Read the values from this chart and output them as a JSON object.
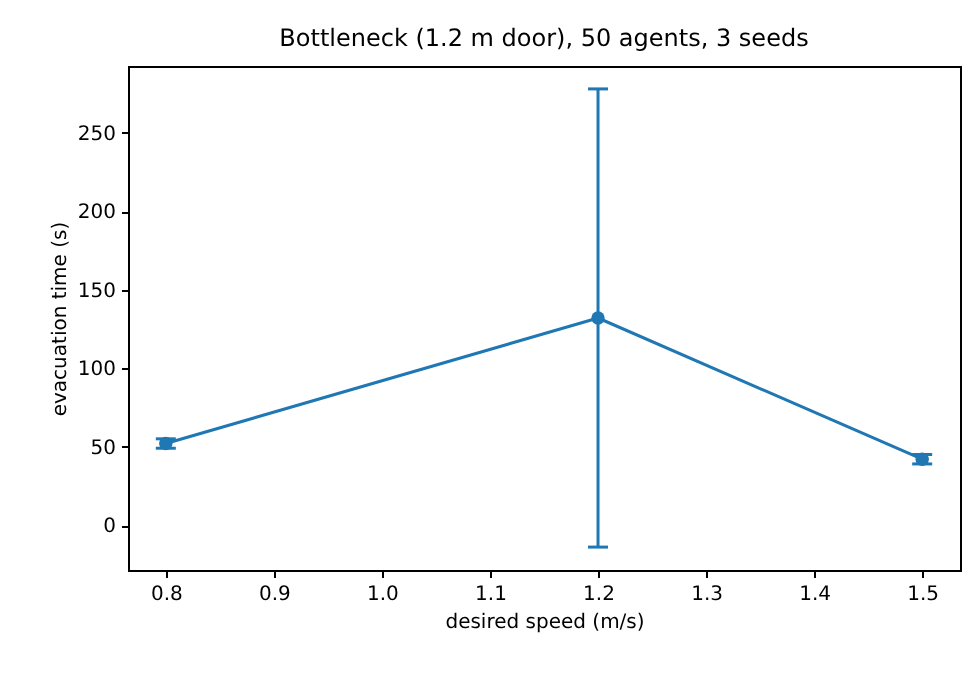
{
  "chart_data": {
    "type": "line",
    "title": "Bottleneck (1.2 m door), 50 agents, 3 seeds",
    "xlabel": "desired speed (m/s)",
    "ylabel": "evacuation time (s)",
    "x": [
      0.8,
      1.2,
      1.5
    ],
    "series": [
      {
        "color": "#1f77b4",
        "values": [
          52,
          132,
          42
        ],
        "errors": [
          3,
          146,
          3
        ]
      }
    ],
    "xlim": [
      0.765,
      1.535
    ],
    "xticks": [
      {
        "value": 0.8,
        "label": "0.8"
      },
      {
        "value": 0.9,
        "label": "0.9"
      },
      {
        "value": 1.0,
        "label": "1.0"
      },
      {
        "value": 1.1,
        "label": "1.1"
      },
      {
        "value": 1.2,
        "label": "1.2"
      },
      {
        "value": 1.3,
        "label": "1.3"
      },
      {
        "value": 1.4,
        "label": "1.4"
      },
      {
        "value": 1.5,
        "label": "1.5"
      }
    ],
    "ylim": [
      -28.6,
      292.6
    ],
    "yticks": [
      0,
      50,
      100,
      150,
      200,
      250
    ],
    "grid": false,
    "marker": "circle",
    "line_style": "solid"
  }
}
